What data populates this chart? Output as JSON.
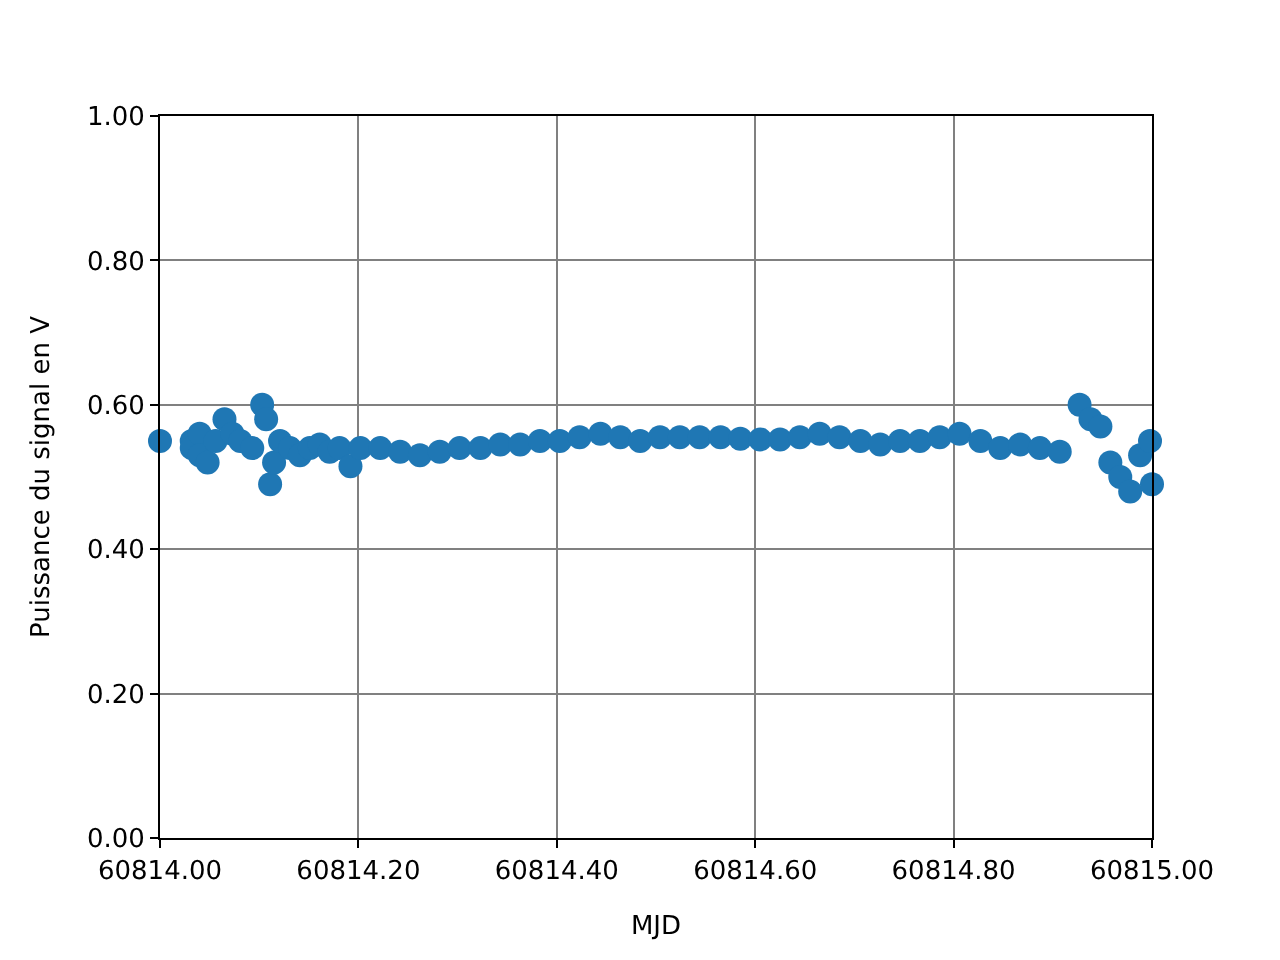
{
  "chart_data": {
    "type": "scatter",
    "xlabel": "MJD",
    "ylabel": "Puissance du signal en V",
    "marker": "circle",
    "grid": true,
    "xlim": [
      60814.0,
      60815.0
    ],
    "xticks": [
      {
        "value": 60814.0,
        "label": "60814.00"
      },
      {
        "value": 60814.2,
        "label": "60814.20"
      },
      {
        "value": 60814.4,
        "label": "60814.40"
      },
      {
        "value": 60814.6,
        "label": "60814.60"
      },
      {
        "value": 60814.8,
        "label": "60814.80"
      },
      {
        "value": 60815.0,
        "label": "60815.00"
      }
    ],
    "ylim": [
      0,
      1
    ],
    "yticks": [
      {
        "value": 0,
        "label": "0.00"
      },
      {
        "value": 0.2,
        "label": "0.20"
      },
      {
        "value": 0.4,
        "label": "0.40"
      },
      {
        "value": 0.6,
        "label": "0.60"
      },
      {
        "value": 0.8,
        "label": "0.80"
      },
      {
        "value": 1.0,
        "label": "1.00"
      }
    ],
    "series": [
      {
        "color": "#1f77b4",
        "x": [
          60814.0,
          60814.032,
          60814.032,
          60814.04,
          60814.04,
          60814.048,
          60814.056,
          60814.065,
          60814.073,
          60814.081,
          60814.093,
          60814.103,
          60814.107,
          60814.111,
          60814.115,
          60814.121,
          60814.131,
          60814.141,
          60814.151,
          60814.161,
          60814.171,
          60814.181,
          60814.192,
          60814.202,
          60814.222,
          60814.242,
          60814.262,
          60814.282,
          60814.302,
          60814.323,
          60814.343,
          60814.363,
          60814.383,
          60814.403,
          60814.423,
          60814.444,
          60814.464,
          60814.484,
          60814.504,
          60814.524,
          60814.544,
          60814.565,
          60814.585,
          60814.605,
          60814.625,
          60814.645,
          60814.665,
          60814.685,
          60814.706,
          60814.726,
          60814.746,
          60814.766,
          60814.786,
          60814.806,
          60814.827,
          60814.847,
          60814.867,
          60814.887,
          60814.907,
          60814.927,
          60814.938,
          60814.948,
          60814.958,
          60814.968,
          60814.978,
          60814.988,
          60814.998,
          60815.0
        ],
        "values": [
          0.55,
          0.55,
          0.54,
          0.56,
          0.53,
          0.52,
          0.55,
          0.58,
          0.56,
          0.55,
          0.54,
          0.6,
          0.58,
          0.49,
          0.52,
          0.55,
          0.54,
          0.53,
          0.54,
          0.545,
          0.535,
          0.54,
          0.515,
          0.54,
          0.54,
          0.535,
          0.53,
          0.535,
          0.54,
          0.54,
          0.545,
          0.545,
          0.55,
          0.55,
          0.555,
          0.56,
          0.555,
          0.55,
          0.555,
          0.555,
          0.555,
          0.555,
          0.553,
          0.552,
          0.552,
          0.555,
          0.56,
          0.555,
          0.55,
          0.545,
          0.55,
          0.55,
          0.555,
          0.56,
          0.55,
          0.54,
          0.545,
          0.54,
          0.535,
          0.6,
          0.58,
          0.57,
          0.52,
          0.5,
          0.48,
          0.53,
          0.55,
          0.49
        ]
      }
    ]
  }
}
